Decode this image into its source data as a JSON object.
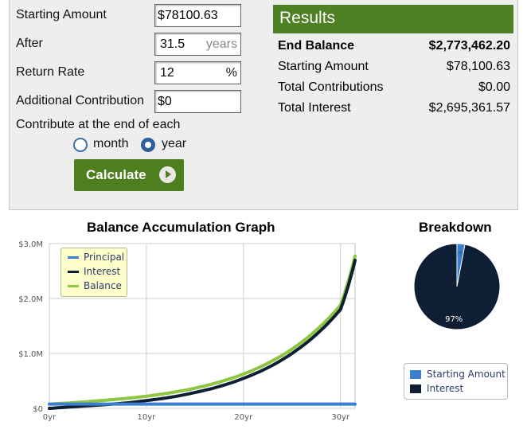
{
  "form": {
    "starting_amount_label": "Starting Amount",
    "starting_amount_value": "$78100.63",
    "after_label": "After",
    "after_value": "31.5",
    "after_unit": "years",
    "return_rate_label": "Return Rate",
    "return_rate_value": "12",
    "return_rate_unit": "%",
    "additional_label": "Additional Contribution",
    "additional_value": "$0",
    "contribute_label": "Contribute at the end of each",
    "options": [
      {
        "label": "month",
        "selected": false
      },
      {
        "label": "year",
        "selected": true
      }
    ],
    "calculate_label": "Calculate"
  },
  "results": {
    "title": "Results",
    "rows": [
      {
        "label": "End Balance",
        "value": "$2,773,462.20",
        "bold": true
      },
      {
        "label": "Starting Amount",
        "value": "$78,100.63"
      },
      {
        "label": "Total Contributions",
        "value": "$0.00"
      },
      {
        "label": "Total Interest",
        "value": "$2,695,361.57"
      }
    ]
  },
  "colors": {
    "principal": "#3a7fd0",
    "interest": "#0e1f33",
    "balance": "#8dc63f",
    "results_header": "#4e8123",
    "button": "#4f7e1f"
  },
  "chart_data": [
    {
      "type": "line",
      "title": "Balance Accumulation Graph",
      "x_ticks": [
        "0yr",
        "10yr",
        "20yr",
        "30yr"
      ],
      "y_ticks": [
        "$0",
        "$1.0M",
        "$2.0M",
        "$3.0M"
      ],
      "xlim": [
        0,
        31.5
      ],
      "ylim": [
        0,
        3000000
      ],
      "grid": true,
      "legend_position": "top-left",
      "x": [
        0,
        5,
        10,
        15,
        20,
        25,
        30,
        31.5
      ],
      "series": [
        {
          "name": "Principal",
          "values": [
            78100.63,
            78100.63,
            78100.63,
            78100.63,
            78100.63,
            78100.63,
            78100.63,
            78100.63
          ]
        },
        {
          "name": "Interest",
          "values": [
            0,
            59540,
            142460,
            288660,
            546310,
            1000400,
            1800650,
            2695361.57
          ]
        },
        {
          "name": "Balance",
          "values": [
            78100.63,
            137640,
            220560,
            366760,
            624410,
            1078500,
            1878750,
            2773462.2
          ]
        }
      ]
    },
    {
      "type": "pie",
      "title": "Breakdown",
      "labels": [
        "Starting Amount",
        "Interest"
      ],
      "values": [
        3,
        97
      ],
      "value_labels": [
        "3%",
        "97%"
      ]
    }
  ]
}
